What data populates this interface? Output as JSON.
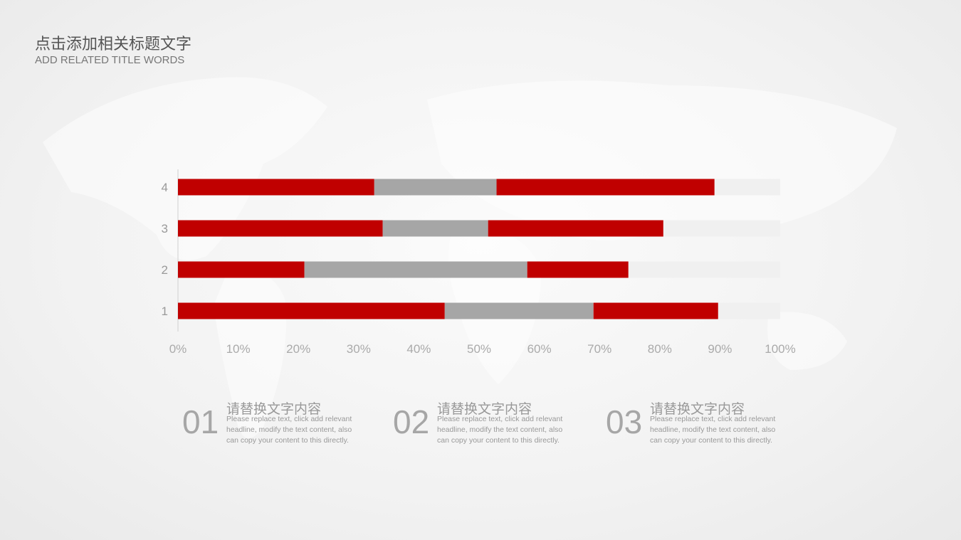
{
  "header": {
    "title": "点击添加相关标题文字",
    "subtitle": "ADD RELATED TITLE WORDS"
  },
  "colors": {
    "red": "#c00000",
    "gray": "#a6a6a6",
    "light": "#f0f0f0"
  },
  "chart_data": {
    "type": "bar",
    "orientation": "horizontal",
    "stacked": "percent",
    "categories": [
      "1",
      "2",
      "3",
      "4"
    ],
    "series": [
      {
        "values": [
          44.3,
          21.0,
          34.0,
          32.6
        ],
        "color": "#c00000"
      },
      {
        "values": [
          24.7,
          37.0,
          17.5,
          20.3
        ],
        "color": "#a6a6a6"
      },
      {
        "values": [
          20.7,
          16.8,
          29.1,
          36.2
        ],
        "color": "#c00000"
      },
      {
        "values": [
          10.3,
          25.2,
          19.4,
          10.9
        ],
        "color": "#f0f0f0"
      }
    ],
    "xlim": [
      0,
      100
    ],
    "xticks": [
      "0%",
      "10%",
      "20%",
      "30%",
      "40%",
      "50%",
      "60%",
      "70%",
      "80%",
      "90%",
      "100%"
    ],
    "grid": false
  },
  "items": [
    {
      "num": "01",
      "head": "请替换文字内容",
      "desc": "Please replace text, click add relevant headline, modify the text content, also can copy your content to this directly."
    },
    {
      "num": "02",
      "head": "请替换文字内容",
      "desc": "Please replace text, click add relevant headline, modify the text content, also can copy your content to this directly."
    },
    {
      "num": "03",
      "head": "请替换文字内容",
      "desc": "Please replace text, click add relevant headline, modify the text content, also can copy your content to this directly."
    }
  ]
}
